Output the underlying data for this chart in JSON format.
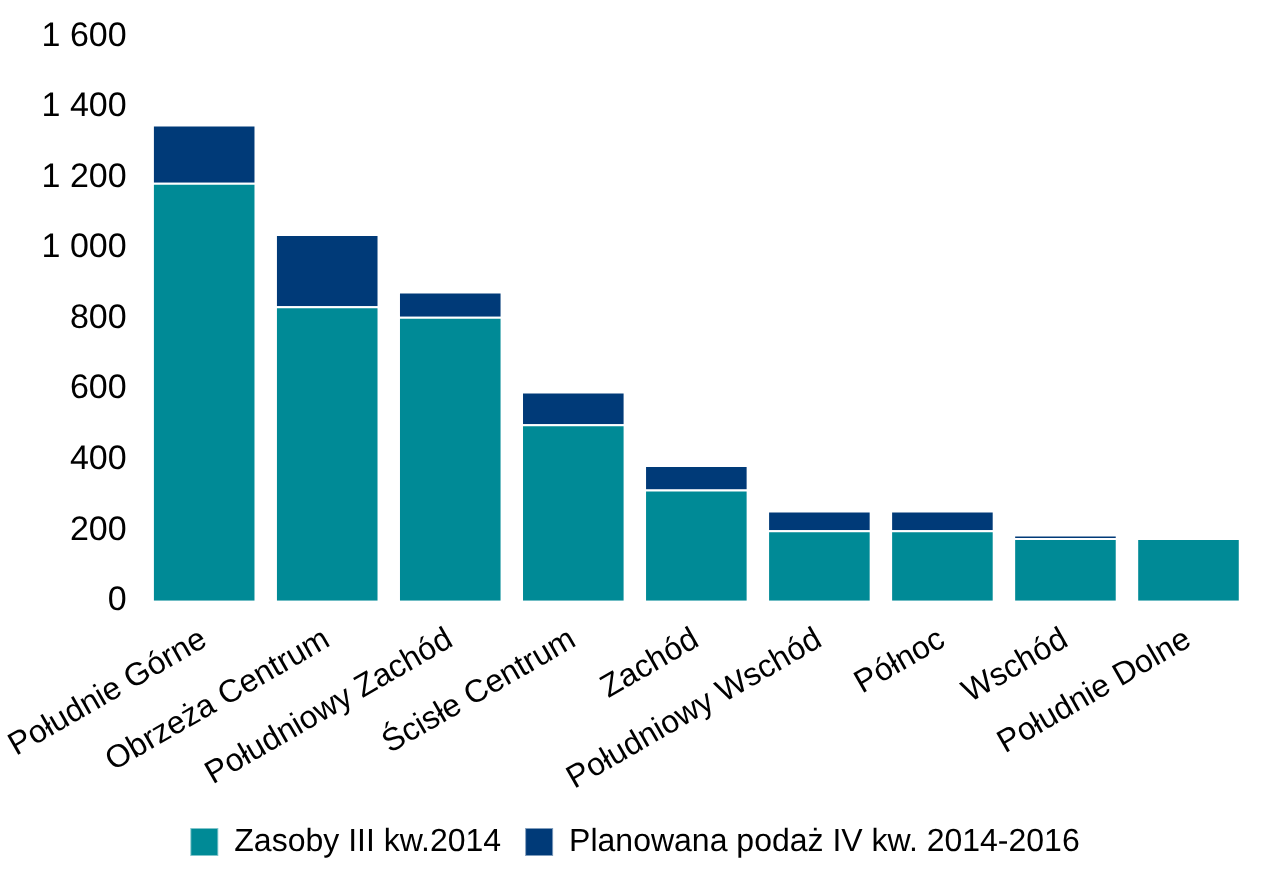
{
  "chart_data": {
    "type": "bar",
    "stacked": true,
    "categories": [
      "Południe Górne",
      "Obrzeża Centrum",
      "Południowy Zachód",
      "Ścisłe Centrum",
      "Zachód",
      "Południowy Wschód",
      "Północ",
      "Wschód",
      "Południe Dolne"
    ],
    "series": [
      {
        "name": "Zasoby III kw.2014",
        "color": "#008a96",
        "values": [
          1185,
          835,
          805,
          500,
          315,
          200,
          200,
          178,
          178
        ]
      },
      {
        "name": "Planowana podaż IV kw. 2014-2016",
        "color": "#003a78",
        "values": [
          165,
          205,
          72,
          93,
          70,
          56,
          56,
          8,
          0
        ]
      }
    ],
    "ylim": [
      0,
      1600
    ],
    "yticks": [
      0,
      200,
      400,
      600,
      800,
      {
        "value": 1000,
        "label": "1 000"
      },
      {
        "value": 1200,
        "label": "1 200"
      },
      {
        "value": 1400,
        "label": "1 400"
      },
      {
        "value": 1600,
        "label": "1 600"
      }
    ],
    "grid": false,
    "legend": "bottom"
  }
}
